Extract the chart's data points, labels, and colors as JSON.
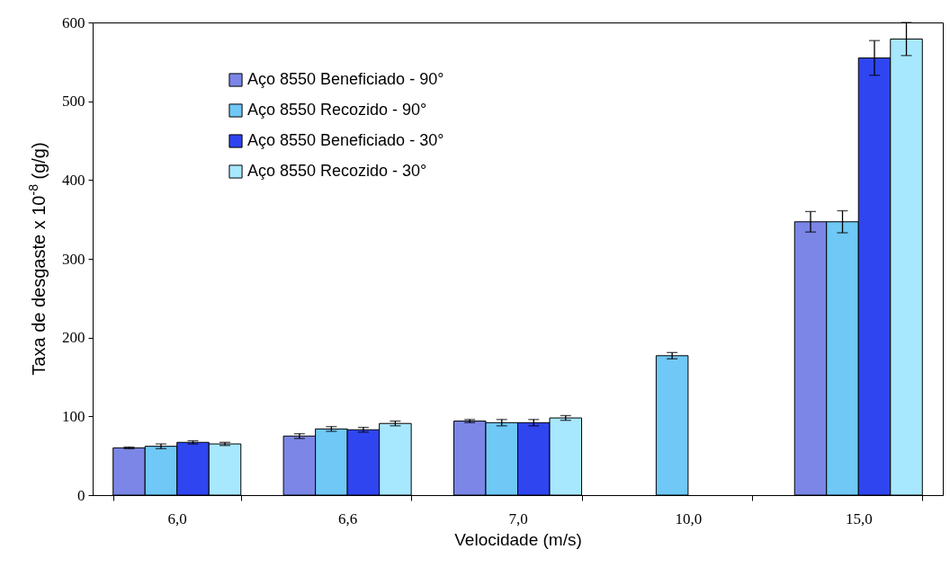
{
  "chart_data": {
    "type": "bar",
    "xlabel": "Velocidade (m/s)",
    "ylabel": "Taxa de desgaste x 10$^{-8}$ (g/g)",
    "categories": [
      "6,0",
      "6,6",
      "7,0",
      "10,0",
      "15,0"
    ],
    "ylim": [
      0,
      600
    ],
    "yticks": [
      0,
      100,
      200,
      300,
      400,
      500,
      600
    ],
    "grid": false,
    "legend": "top left",
    "series": [
      {
        "name": "Aço 8550 Beneficiado - 90°",
        "color": "#7b86e6",
        "values": [
          60,
          75,
          94,
          null,
          347
        ],
        "errors": [
          1,
          3,
          2,
          null,
          13
        ]
      },
      {
        "name": "Aço 8550 Recozido - 90°",
        "color": "#6fc8f5",
        "values": [
          62,
          84,
          92,
          177,
          347
        ],
        "errors": [
          3,
          3,
          4,
          4,
          14
        ]
      },
      {
        "name": "Aço 8550 Beneficiado - 30°",
        "color": "#2f45f0",
        "values": [
          67,
          83,
          92,
          null,
          555
        ],
        "errors": [
          2,
          3,
          4,
          null,
          22
        ]
      },
      {
        "name": "Aço 8550 Recozido - 30°",
        "color": "#a8e8ff",
        "values": [
          65,
          91,
          98,
          null,
          579
        ],
        "errors": [
          2,
          3,
          3,
          null,
          21
        ]
      }
    ]
  }
}
